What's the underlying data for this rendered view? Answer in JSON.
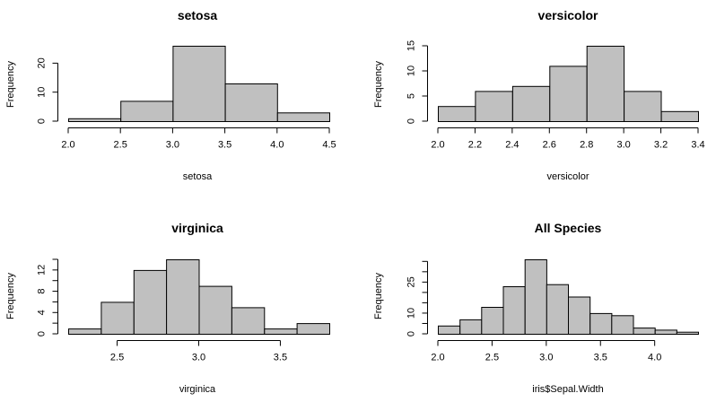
{
  "chart_data": [
    {
      "type": "bar",
      "title": "setosa",
      "xlabel": "setosa",
      "ylabel": "Frequency",
      "bins": [
        [
          2.0,
          2.5
        ],
        [
          2.5,
          3.0
        ],
        [
          3.0,
          3.5
        ],
        [
          3.5,
          4.0
        ],
        [
          4.0,
          4.5
        ]
      ],
      "values": [
        1,
        7,
        26,
        13,
        3
      ],
      "xticks": [
        2.0,
        2.5,
        3.0,
        3.5,
        4.0,
        4.5
      ],
      "xtick_labels": [
        "2.0",
        "2.5",
        "3.0",
        "3.5",
        "4.0",
        "4.5"
      ],
      "yticks": [
        0,
        10,
        20
      ],
      "xlim": [
        2.0,
        4.5
      ],
      "ylim": [
        0,
        26
      ]
    },
    {
      "type": "bar",
      "title": "versicolor",
      "xlabel": "versicolor",
      "ylabel": "Frequency",
      "bins": [
        [
          2.0,
          2.2
        ],
        [
          2.2,
          2.4
        ],
        [
          2.4,
          2.6
        ],
        [
          2.6,
          2.8
        ],
        [
          2.8,
          3.0
        ],
        [
          3.0,
          3.2
        ],
        [
          3.2,
          3.4
        ]
      ],
      "values": [
        3,
        6,
        7,
        11,
        15,
        6,
        2
      ],
      "xticks": [
        2.0,
        2.2,
        2.4,
        2.6,
        2.8,
        3.0,
        3.2,
        3.4
      ],
      "xtick_labels": [
        "2.0",
        "2.2",
        "2.4",
        "2.6",
        "2.8",
        "3.0",
        "3.2",
        "3.4"
      ],
      "yticks": [
        0,
        5,
        10,
        15
      ],
      "xlim": [
        2.0,
        3.4
      ],
      "ylim": [
        0,
        15
      ]
    },
    {
      "type": "bar",
      "title": "virginica",
      "xlabel": "virginica",
      "ylabel": "Frequency",
      "bins": [
        [
          2.2,
          2.4
        ],
        [
          2.4,
          2.6
        ],
        [
          2.6,
          2.8
        ],
        [
          2.8,
          3.0
        ],
        [
          3.0,
          3.2
        ],
        [
          3.2,
          3.4
        ],
        [
          3.4,
          3.6
        ],
        [
          3.6,
          3.8
        ]
      ],
      "values": [
        1,
        6,
        12,
        14,
        9,
        5,
        1,
        2
      ],
      "xticks": [
        2.5,
        3.0,
        3.5
      ],
      "xtick_labels": [
        "2.5",
        "3.0",
        "3.5"
      ],
      "yticks": [
        0,
        4,
        8,
        12
      ],
      "yticks_minor": [
        2,
        6,
        10,
        14
      ],
      "ytick_labels": [
        "0",
        "4",
        "8",
        "12"
      ],
      "xlim": [
        2.2,
        3.8
      ],
      "ylim": [
        0,
        14
      ]
    },
    {
      "type": "bar",
      "title": "All Species",
      "xlabel": "iris$Sepal.Width",
      "ylabel": "Frequency",
      "bins": [
        [
          2.0,
          2.2
        ],
        [
          2.2,
          2.4
        ],
        [
          2.4,
          2.6
        ],
        [
          2.6,
          2.8
        ],
        [
          2.8,
          3.0
        ],
        [
          3.0,
          3.2
        ],
        [
          3.2,
          3.4
        ],
        [
          3.4,
          3.6
        ],
        [
          3.6,
          3.8
        ],
        [
          3.8,
          4.0
        ],
        [
          4.0,
          4.2
        ],
        [
          4.2,
          4.4
        ]
      ],
      "values": [
        4,
        7,
        13,
        23,
        36,
        24,
        18,
        10,
        9,
        3,
        2,
        1
      ],
      "xticks": [
        2.0,
        2.5,
        3.0,
        3.5,
        4.0
      ],
      "xtick_labels": [
        "2.0",
        "2.5",
        "3.0",
        "3.5",
        "4.0"
      ],
      "yticks": [
        0,
        10,
        25
      ],
      "yticks_minor": [
        5,
        15,
        20,
        30,
        35
      ],
      "ytick_labels": [
        "0",
        "10",
        "25"
      ],
      "xlim": [
        2.0,
        4.4
      ],
      "ylim": [
        0,
        36
      ]
    }
  ]
}
